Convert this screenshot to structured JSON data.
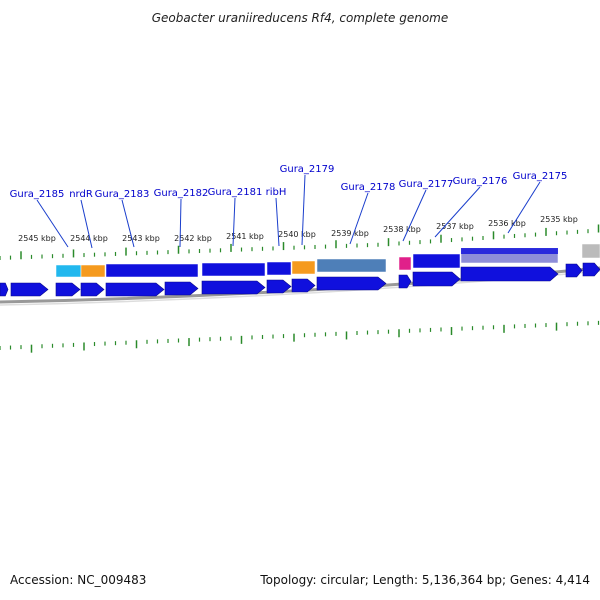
{
  "title": "Geobacter uraniireducens Rf4, complete genome",
  "footer": {
    "accession": "Accession: NC_009483",
    "summary": "Topology: circular; Length: 5,136,364 bp; Genes: 4,414"
  },
  "colors": {
    "tick": "#2a8a2a",
    "gene_label": "#0000cc",
    "gene_line": "#1a3ecc",
    "cds": "#1010dd",
    "cds_cyan": "#22b8ee",
    "cds_orange": "#f59a1e",
    "cds_steel": "#4e7fb8",
    "cds_magenta": "#e0208a",
    "cds_lavender": "#8e8ed8",
    "cds_gray": "#bbbbbb",
    "backbone": "#999999"
  },
  "scale_labels": [
    "2545 kbp",
    "2544 kbp",
    "2543 kbp",
    "2542 kbp",
    "2541 kbp",
    "2540 kbp",
    "2539 kbp",
    "2538 kbp",
    "2537 kbp",
    "2536 kbp",
    "2535 kbp"
  ],
  "gene_labels": [
    "Gura_2185",
    "nrdR",
    "Gura_2183",
    "Gura_2182",
    "Gura_2181",
    "ribH",
    "Gura_2179",
    "Gura_2178",
    "Gura_2177",
    "Gura_2176",
    "Gura_2175"
  ]
}
